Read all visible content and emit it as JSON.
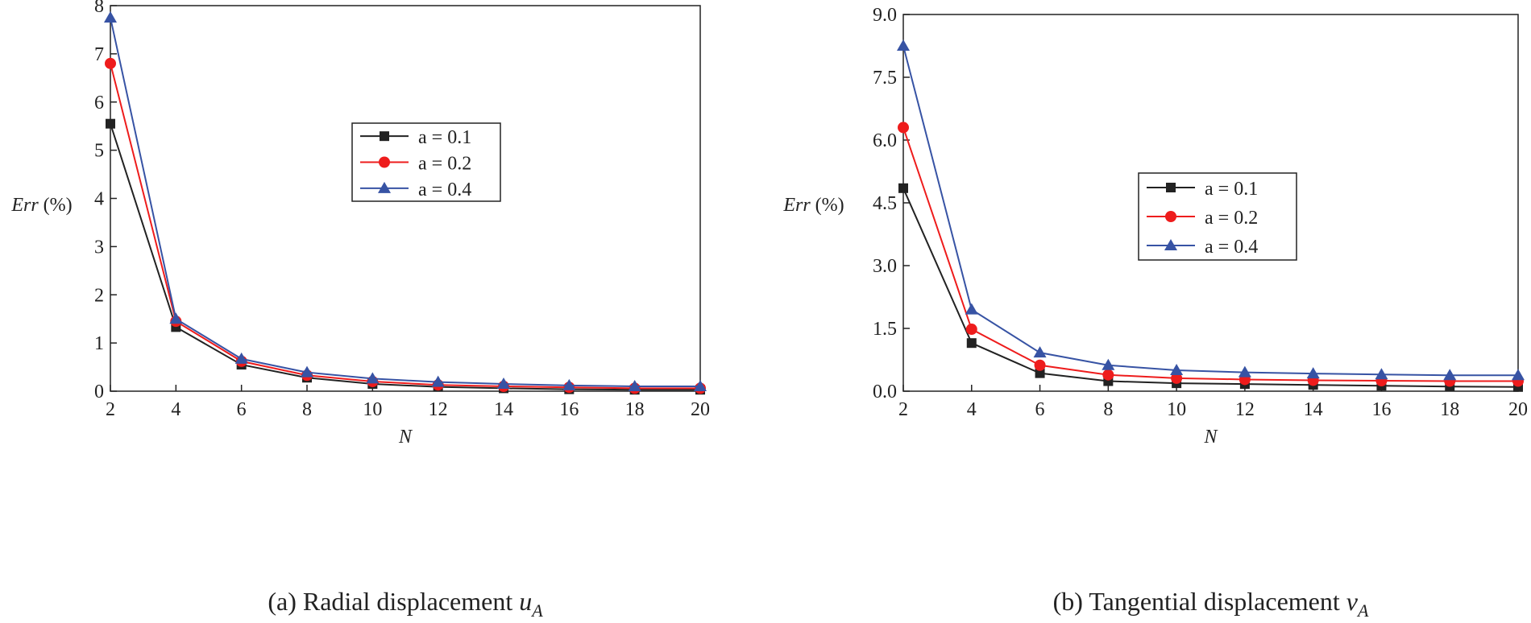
{
  "chart_data": [
    {
      "type": "line",
      "caption": "(a) Radial displacement",
      "caption_var": "u",
      "caption_sub": "A",
      "x_label": "N",
      "y_label_var": "Err",
      "y_label_unit": "(%)",
      "x": [
        2,
        4,
        6,
        8,
        10,
        12,
        14,
        16,
        18,
        20
      ],
      "xlim": [
        2,
        20
      ],
      "xticks": [
        2,
        4,
        6,
        8,
        10,
        12,
        14,
        16,
        18,
        20
      ],
      "ylim": [
        0,
        8
      ],
      "yticks": [
        0,
        1,
        2,
        3,
        4,
        5,
        6,
        7,
        8
      ],
      "legend": "center",
      "series": [
        {
          "name": "a = 0.1",
          "color": "#222222",
          "marker": "square",
          "values": [
            5.55,
            1.33,
            0.55,
            0.28,
            0.15,
            0.09,
            0.06,
            0.04,
            0.03,
            0.03
          ]
        },
        {
          "name": "a = 0.2",
          "color": "#ee1c1c",
          "marker": "circle",
          "values": [
            6.8,
            1.45,
            0.62,
            0.33,
            0.2,
            0.13,
            0.1,
            0.08,
            0.06,
            0.06
          ]
        },
        {
          "name": "a = 0.4",
          "color": "#3753a4",
          "marker": "triangle",
          "values": [
            7.75,
            1.5,
            0.67,
            0.39,
            0.26,
            0.19,
            0.15,
            0.12,
            0.1,
            0.1
          ]
        }
      ]
    },
    {
      "type": "line",
      "caption": "(b) Tangential displacement",
      "caption_var": "v",
      "caption_sub": "A",
      "x_label": "N",
      "y_label_var": "Err",
      "y_label_unit": "(%)",
      "x": [
        2,
        4,
        6,
        8,
        10,
        12,
        14,
        16,
        18,
        20
      ],
      "xlim": [
        2,
        20
      ],
      "xticks": [
        2,
        4,
        6,
        8,
        10,
        12,
        14,
        16,
        18,
        20
      ],
      "ylim": [
        0,
        9
      ],
      "yticks": [
        {
          "value": 0,
          "label": "0.0"
        },
        1.5,
        {
          "value": 3,
          "label": "3.0"
        },
        4.5,
        {
          "value": 6,
          "label": "6.0"
        },
        7.5,
        {
          "value": 9,
          "label": "9.0"
        }
      ],
      "legend": "center",
      "series": [
        {
          "name": "a = 0.1",
          "color": "#222222",
          "marker": "square",
          "values": [
            4.85,
            1.15,
            0.43,
            0.24,
            0.19,
            0.17,
            0.15,
            0.13,
            0.11,
            0.1
          ]
        },
        {
          "name": "a = 0.2",
          "color": "#ee1c1c",
          "marker": "circle",
          "values": [
            6.3,
            1.48,
            0.62,
            0.39,
            0.31,
            0.28,
            0.26,
            0.25,
            0.24,
            0.24
          ]
        },
        {
          "name": "a = 0.4",
          "color": "#3753a4",
          "marker": "triangle",
          "values": [
            8.25,
            1.95,
            0.92,
            0.62,
            0.5,
            0.45,
            0.42,
            0.4,
            0.38,
            0.38
          ]
        }
      ]
    }
  ]
}
